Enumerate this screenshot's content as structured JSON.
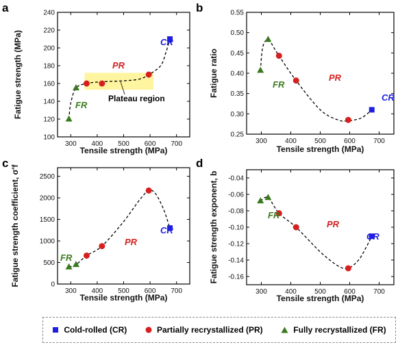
{
  "chart_data": [
    {
      "panel": "a",
      "type": "scatter",
      "xlabel": "Tensile strength (MPa)",
      "ylabel": "Fatigue strength (MPa)",
      "xlim": [
        250,
        750
      ],
      "ylim": [
        100,
        240
      ],
      "xticks": [
        300,
        400,
        500,
        600,
        700
      ],
      "yticks": [
        100,
        120,
        140,
        160,
        180,
        200,
        220,
        240
      ],
      "series": [
        {
          "name": "Cold-rolled (CR)",
          "x": [
            675
          ],
          "y": [
            210
          ]
        },
        {
          "name": "Partially recrystallized (PR)",
          "x": [
            360,
            418,
            595
          ],
          "y": [
            160,
            160,
            170
          ]
        },
        {
          "name": "Fully recrystallized (FR)",
          "x": [
            293,
            320
          ],
          "y": [
            120,
            155
          ]
        }
      ],
      "annotations": [
        "CR",
        "PR",
        "FR",
        "Plateau region"
      ],
      "highlight": {
        "label": "Plateau region",
        "x": [
          352,
          613
        ],
        "y": [
          153,
          172
        ]
      }
    },
    {
      "panel": "b",
      "type": "scatter",
      "xlabel": "Tensile strength (MPa)",
      "ylabel": "Fatigue ratio",
      "xlim": [
        250,
        750
      ],
      "ylim": [
        0.25,
        0.55
      ],
      "xticks": [
        300,
        400,
        500,
        600,
        700
      ],
      "yticks": [
        0.25,
        0.3,
        0.35,
        0.4,
        0.45,
        0.5,
        0.55
      ],
      "series": [
        {
          "name": "Cold-rolled (CR)",
          "x": [
            675
          ],
          "y": [
            0.31
          ]
        },
        {
          "name": "Partially recrystallized (PR)",
          "x": [
            360,
            418,
            595
          ],
          "y": [
            0.443,
            0.382,
            0.285
          ]
        },
        {
          "name": "Fully recrystallized (FR)",
          "x": [
            297,
            323
          ],
          "y": [
            0.407,
            0.483
          ]
        }
      ],
      "annotations": [
        "CR",
        "PR",
        "FR"
      ]
    },
    {
      "panel": "c",
      "type": "scatter",
      "xlabel": "Tensile strength (MPa)",
      "ylabel": "Fatigue strength coefficient, σ'f",
      "xlim": [
        250,
        750
      ],
      "ylim": [
        0,
        2700
      ],
      "xticks": [
        300,
        400,
        500,
        600,
        700
      ],
      "yticks": [
        0,
        500,
        1000,
        1500,
        2000,
        2500
      ],
      "series": [
        {
          "name": "Cold-rolled (CR)",
          "x": [
            675
          ],
          "y": [
            1300
          ]
        },
        {
          "name": "Partially recrystallized (PR)",
          "x": [
            360,
            418,
            595
          ],
          "y": [
            660,
            880,
            2170
          ]
        },
        {
          "name": "Fully recrystallized (FR)",
          "x": [
            293,
            320
          ],
          "y": [
            395,
            450
          ]
        }
      ],
      "annotations": [
        "CR",
        "PR",
        "FR"
      ]
    },
    {
      "panel": "d",
      "type": "scatter",
      "xlabel": "Tensile strength (MPa)",
      "ylabel": "Fatigue strength exponent, b",
      "xlim": [
        250,
        750
      ],
      "ylim": [
        -0.17,
        -0.03
      ],
      "xticks": [
        300,
        400,
        500,
        600,
        700
      ],
      "yticks": [
        -0.16,
        -0.14,
        -0.12,
        -0.1,
        -0.08,
        -0.06,
        -0.04
      ],
      "series": [
        {
          "name": "Cold-rolled (CR)",
          "x": [
            675
          ],
          "y": [
            -0.111
          ]
        },
        {
          "name": "Partially recrystallized (PR)",
          "x": [
            360,
            418,
            595
          ],
          "y": [
            -0.083,
            -0.1,
            -0.15
          ]
        },
        {
          "name": "Fully recrystallized (FR)",
          "x": [
            297,
            323
          ],
          "y": [
            -0.068,
            -0.064
          ]
        }
      ],
      "annotations": [
        "CR",
        "PR",
        "FR"
      ]
    }
  ],
  "legend": {
    "items": [
      {
        "label": "Cold-rolled (CR)",
        "marker": "square",
        "color": "#1f1fe0"
      },
      {
        "label": "Partially recrystallized (PR)",
        "marker": "circle",
        "color": "#d62020"
      },
      {
        "label": "Fully recrystallized (FR)",
        "marker": "triangle",
        "color": "#3a7a1e"
      }
    ]
  },
  "colors": {
    "cr": "#1f1fe0",
    "pr": "#d62020",
    "fr": "#3a7a1e",
    "plateau": "#fff5a0",
    "fit_line": "#000000"
  }
}
